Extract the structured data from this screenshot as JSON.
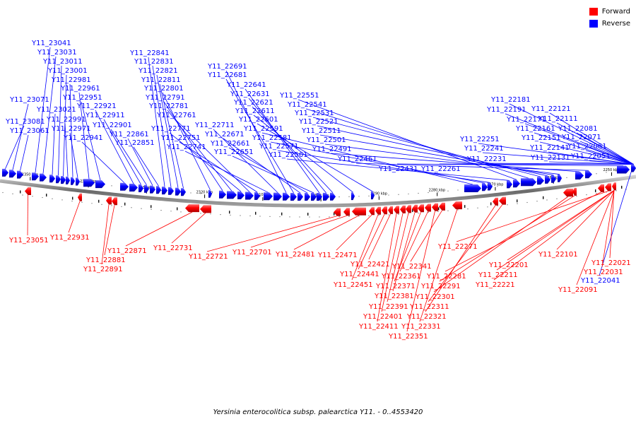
{
  "colors": {
    "forward": "#ff0000",
    "reverse": "#0000ff",
    "backbone": "#808080",
    "tick": "#000000"
  },
  "legend": [
    {
      "label": "Forward",
      "color": "#ff0000"
    },
    {
      "label": "Reverse",
      "color": "#0000ff"
    }
  ],
  "footer": "Yersinia enterocolitica subsp. palearctica Y11. - 0..4553420",
  "scale": {
    "unit": "kbp",
    "ticks": [
      2350,
      2340,
      2330,
      2320,
      2310,
      2300,
      2290,
      2280,
      2270,
      2260,
      2250
    ],
    "start_kbp": 2355.2,
    "end_kbp": 2245.8
  },
  "genes": {
    "reverse": [
      "Y11_23081",
      "Y11_23071",
      "Y11_23061",
      "Y11_23041",
      "Y11_23031",
      "Y11_23021",
      "Y11_23011",
      "Y11_23001",
      "Y11_22991",
      "Y11_22981",
      "Y11_22971",
      "Y11_22961",
      "Y11_22951",
      "Y11_22941",
      "Y11_22921",
      "Y11_22911",
      "Y11_22901",
      "Y11_22861",
      "Y11_22851",
      "Y11_22841",
      "Y11_22831",
      "Y11_22821",
      "Y11_22811",
      "Y11_22801",
      "Y11_22791",
      "Y11_22781",
      "Y11_22771",
      "Y11_22761",
      "Y11_22751",
      "Y11_22741",
      "Y11_22711",
      "Y11_22691",
      "Y11_22681",
      "Y11_22671",
      "Y11_22661",
      "Y11_22651",
      "Y11_22641",
      "Y11_22631",
      "Y11_22621",
      "Y11_22611",
      "Y11_22601",
      "Y11_22591",
      "Y11_22581",
      "Y11_22571",
      "Y11_22561",
      "Y11_22551",
      "Y11_22541",
      "Y11_22531",
      "Y11_22521",
      "Y11_22511",
      "Y11_22501",
      "Y11_22491",
      "Y11_22461",
      "Y11_22431",
      "Y11_22261",
      "Y11_22251",
      "Y11_22241",
      "Y11_22231",
      "Y11_22191",
      "Y11_22181",
      "Y11_22171",
      "Y11_22161",
      "Y11_22151",
      "Y11_22141",
      "Y11_22131",
      "Y11_22121",
      "Y11_22111",
      "Y11_22081",
      "Y11_22071",
      "Y11_22061",
      "Y11_22051",
      "Y11_22041"
    ],
    "forward": [
      "Y11_23051",
      "Y11_22931",
      "Y11_22891",
      "Y11_22881",
      "Y11_22871",
      "Y11_22731",
      "Y11_22721",
      "Y11_22701",
      "Y11_22481",
      "Y11_22471",
      "Y11_22451",
      "Y11_22441",
      "Y11_22421",
      "Y11_22411",
      "Y11_22401",
      "Y11_22391",
      "Y11_22381",
      "Y11_22371",
      "Y11_22361",
      "Y11_22351",
      "Y11_22341",
      "Y11_22331",
      "Y11_22321",
      "Y11_22311",
      "Y11_22301",
      "Y11_22291",
      "Y11_22281",
      "Y11_22271",
      "Y11_22221",
      "Y11_22211",
      "Y11_22201",
      "Y11_22101",
      "Y11_22091",
      "Y11_22031",
      "Y11_22021"
    ]
  }
}
